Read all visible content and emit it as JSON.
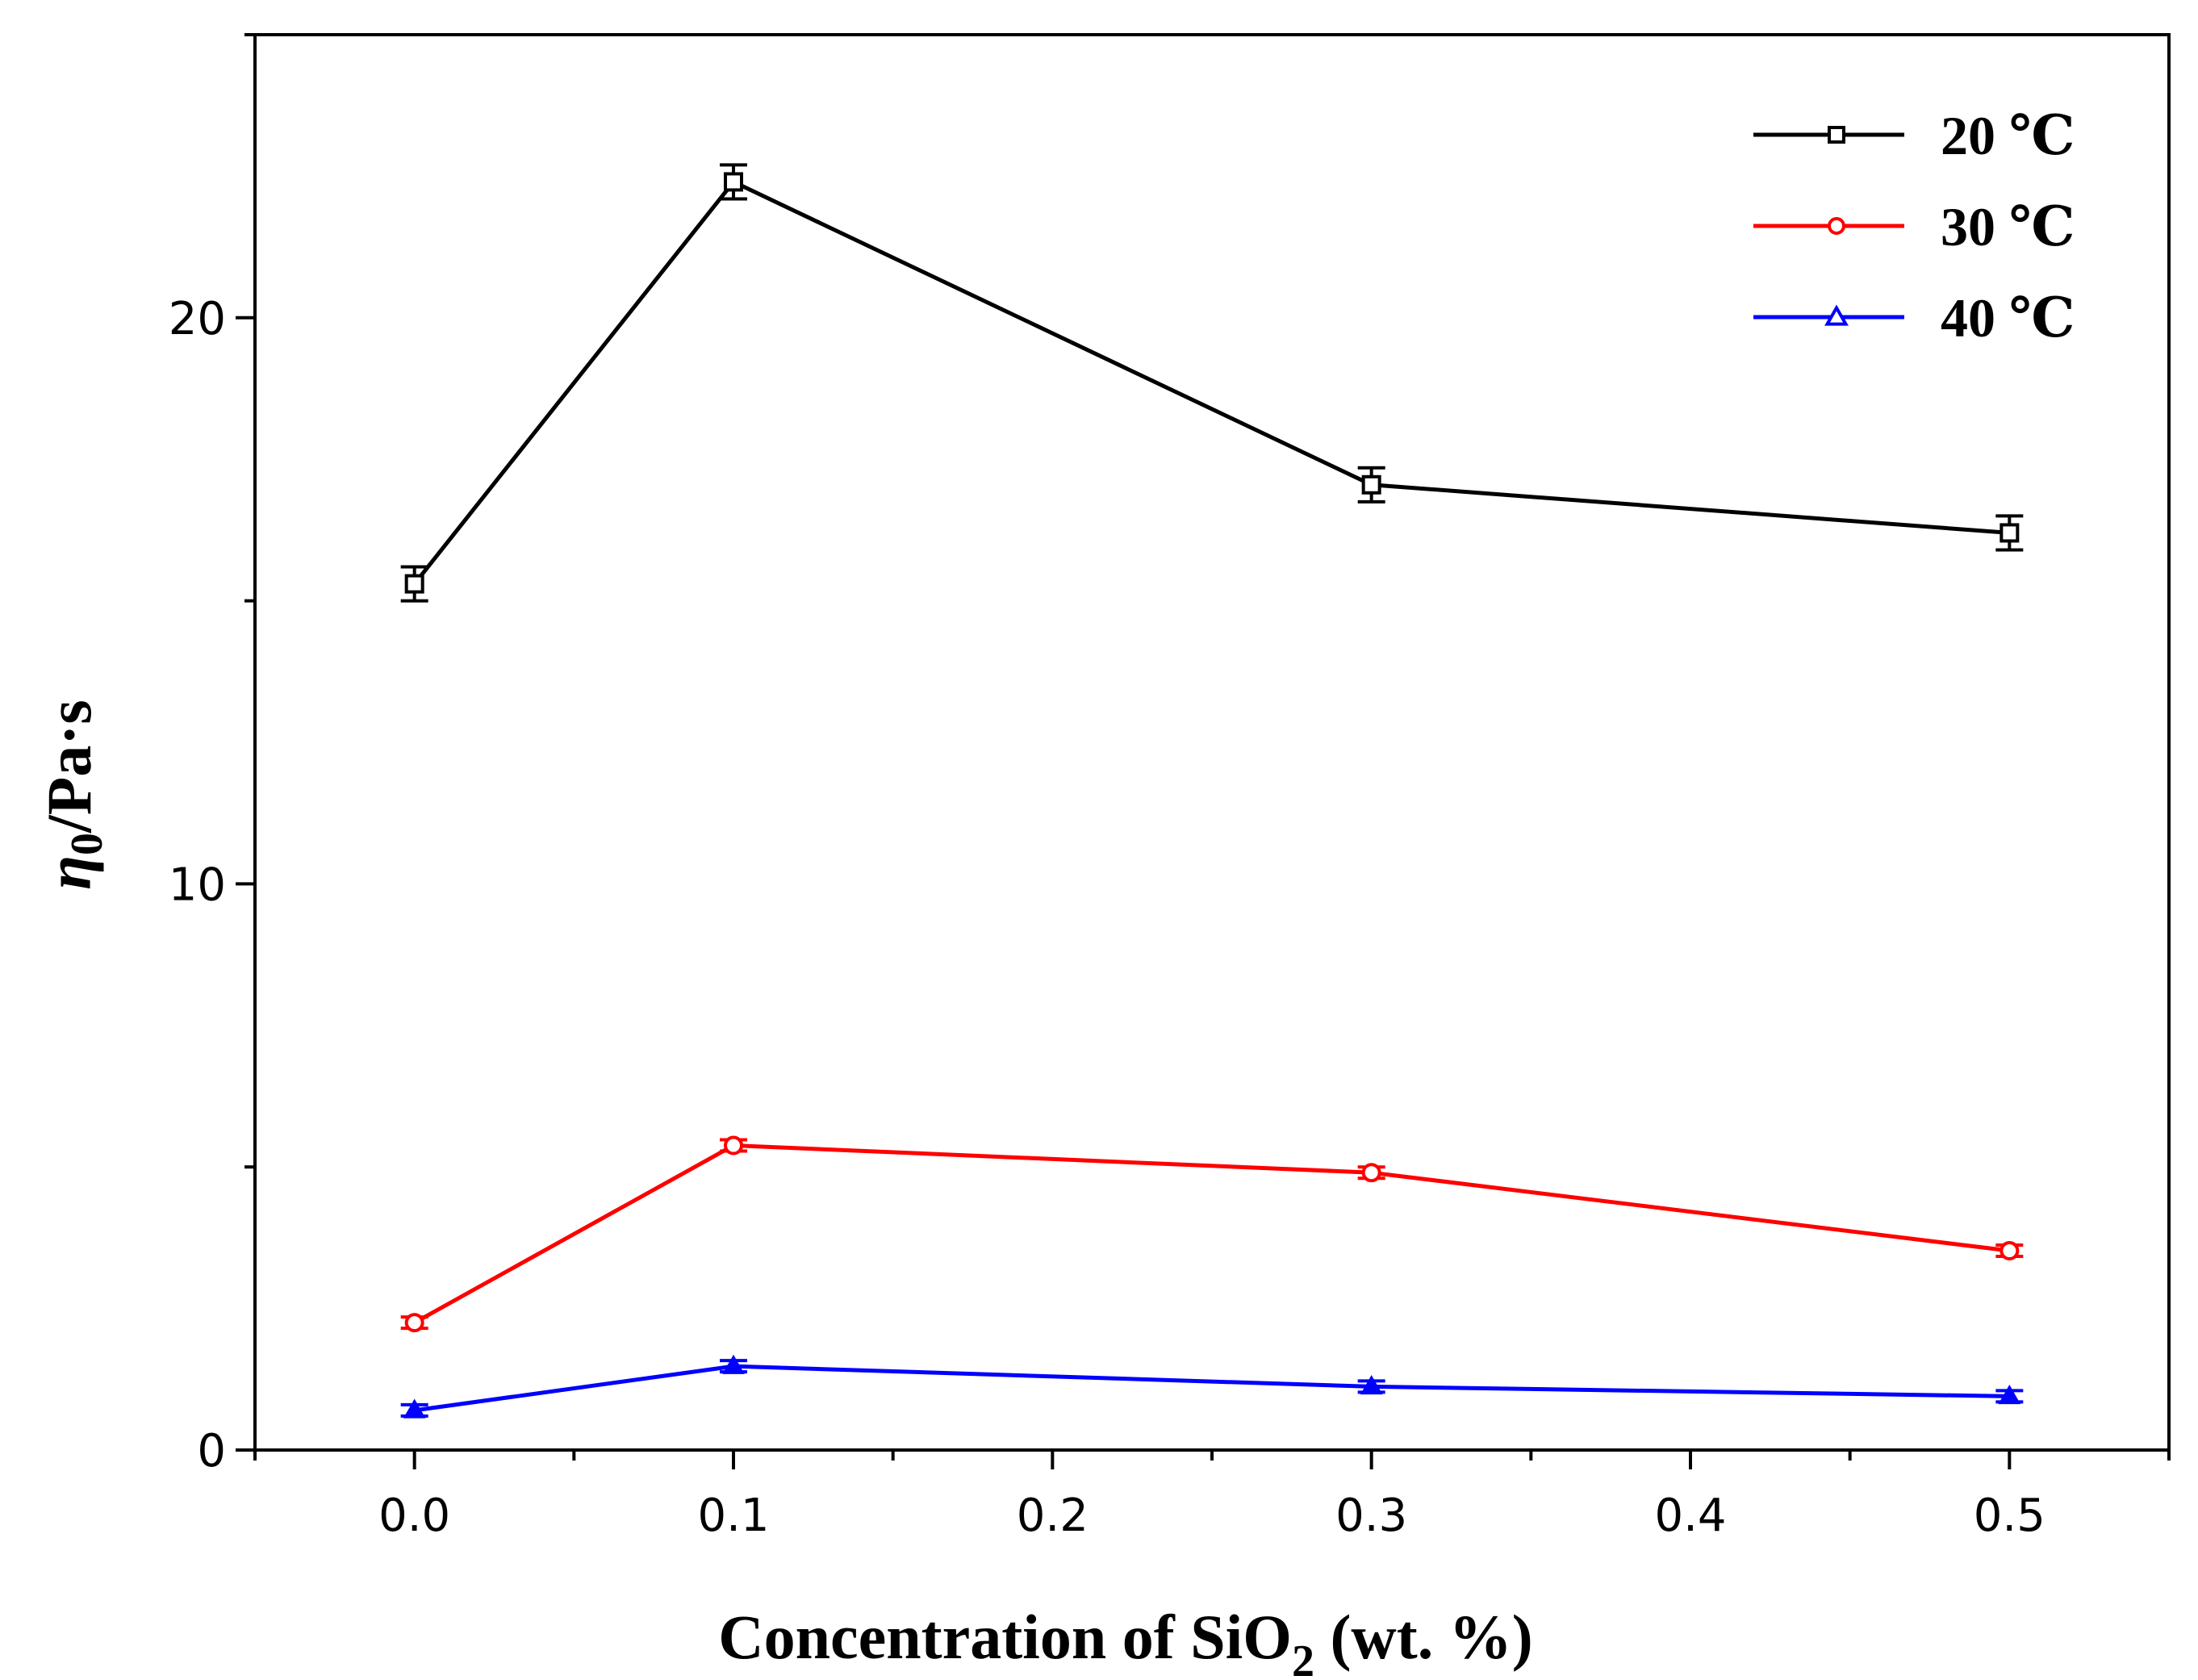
{
  "chart_data": {
    "type": "line",
    "title": "",
    "xlabel_main": "Concentration of SiO",
    "xlabel_sub": "2",
    "xlabel_tail": " (wt. %)",
    "ylabel_symbol": "η",
    "ylabel_sub": "0",
    "ylabel_tail": "/Pa·s",
    "xlim": [
      -0.05,
      0.55
    ],
    "ylim": [
      0,
      25
    ],
    "xticks": [
      0.0,
      0.1,
      0.2,
      0.3,
      0.4,
      0.5
    ],
    "xtick_labels": [
      "0.0",
      "0.1",
      "0.2",
      "0.3",
      "0.4",
      "0.5"
    ],
    "xminor": [
      -0.05,
      0.05,
      0.15,
      0.25,
      0.35,
      0.45,
      0.55
    ],
    "yticks": [
      0,
      10,
      20
    ],
    "ytick_labels": [
      "0",
      "10",
      "20"
    ],
    "yminor": [
      5,
      15,
      25
    ],
    "legend_position": "top-right",
    "series": [
      {
        "name": "20 ℃",
        "color": "#000000",
        "marker": "square",
        "x": [
          0.0,
          0.1,
          0.3,
          0.5
        ],
        "y": [
          15.3,
          22.4,
          17.05,
          16.2
        ],
        "err": [
          0.3,
          0.3,
          0.3,
          0.3
        ]
      },
      {
        "name": "30 ℃",
        "color": "#ff0000",
        "marker": "circle",
        "x": [
          0.0,
          0.1,
          0.3,
          0.5
        ],
        "y": [
          2.25,
          5.38,
          4.9,
          3.52
        ],
        "err": [
          0.1,
          0.1,
          0.1,
          0.1
        ]
      },
      {
        "name": "40 ℃",
        "color": "#0000ff",
        "marker": "triangle",
        "x": [
          0.0,
          0.1,
          0.3,
          0.5
        ],
        "y": [
          0.7,
          1.48,
          1.12,
          0.95
        ],
        "err": [
          0.1,
          0.1,
          0.1,
          0.1
        ]
      }
    ]
  }
}
